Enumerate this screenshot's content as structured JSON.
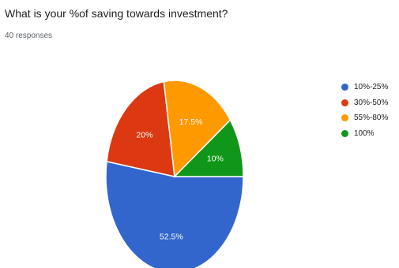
{
  "chart_data": {
    "type": "pie",
    "title": "What is your %of saving towards investment?",
    "subtitle": "40 responses",
    "legend_position": "right",
    "slices": [
      {
        "label": "10%-25%",
        "value": 52.5,
        "display": "52.5%",
        "color": "#3366cc"
      },
      {
        "label": "30%-50%",
        "value": 20,
        "display": "20%",
        "color": "#dc3912"
      },
      {
        "label": "55%-80%",
        "value": 17.5,
        "display": "17.5%",
        "color": "#ff9900"
      },
      {
        "label": "100%",
        "value": 10,
        "display": "10%",
        "color": "#109618"
      }
    ]
  }
}
